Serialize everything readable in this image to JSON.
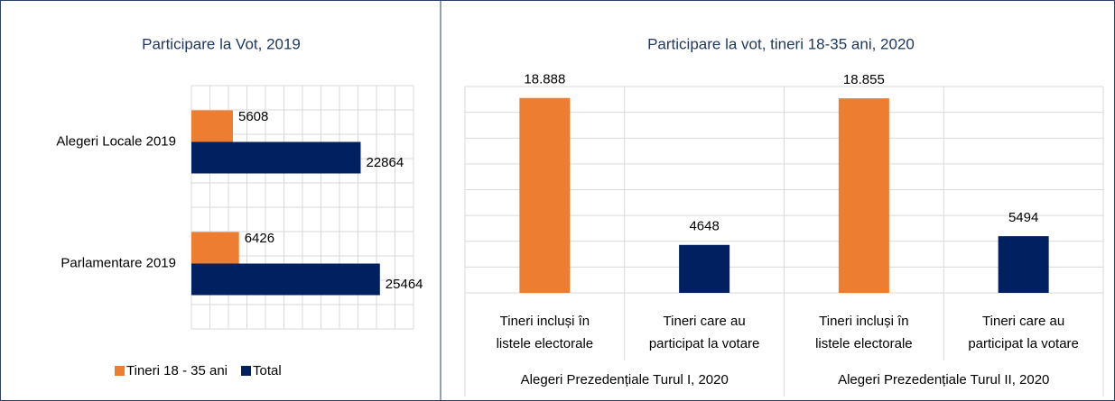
{
  "chart_data": [
    {
      "type": "hbar",
      "title": "Participare la Vot, 2019",
      "categories": [
        "Alegeri Locale 2019",
        "Parlamentare 2019"
      ],
      "series": [
        {
          "name": "Tineri 18 - 35 ani",
          "color": "#ed7d31",
          "values": [
            5608,
            6426
          ]
        },
        {
          "name": "Total",
          "color": "#002060",
          "values": [
            22864,
            25464
          ]
        }
      ],
      "xlim": [
        0,
        30000
      ],
      "xticks": [
        0,
        2500,
        5000,
        7500,
        10000,
        12500,
        15000,
        17500,
        20000,
        22500,
        25000,
        27500,
        30000
      ],
      "grid": true,
      "legend": "bottom"
    },
    {
      "type": "bar",
      "title": "Participare la vot, tineri 18-35 ani, 2020",
      "categories": [
        [
          "Tineri incluși în",
          "listele electorale"
        ],
        [
          "Tineri care au",
          "participat la votare"
        ],
        [
          "Tineri incluși în",
          "listele electorale"
        ],
        [
          "Tineri care au",
          "participat la votare"
        ]
      ],
      "groups": [
        "Alegeri Prezedențiale Turul I, 2020",
        "Alegeri Prezedențiale Turul II, 2020"
      ],
      "values": [
        18888,
        4648,
        18855,
        5494
      ],
      "value_labels": [
        "18.888",
        "4648",
        "18.855",
        "5494"
      ],
      "colors": [
        "#ed7d31",
        "#002060",
        "#ed7d31",
        "#002060"
      ],
      "ylim": [
        0,
        20000
      ],
      "yticks": [
        0,
        2500,
        5000,
        7500,
        10000,
        12500,
        15000,
        17500,
        20000
      ],
      "grid": true
    }
  ]
}
